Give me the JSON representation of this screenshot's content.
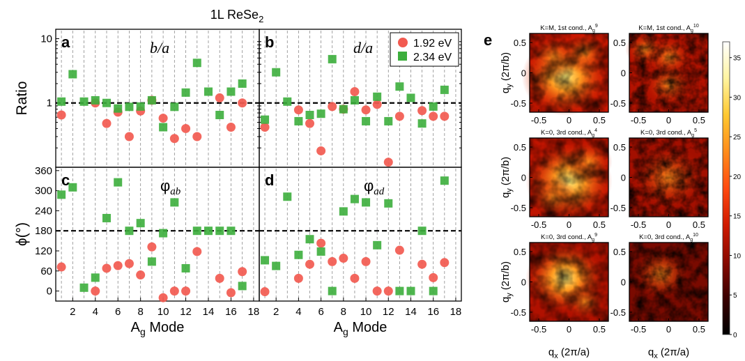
{
  "figure_title": "1L ReSe",
  "figure_title_sub": "2",
  "legend": [
    {
      "label": "1.92 eV",
      "color": "#f25a50",
      "shape": "circle"
    },
    {
      "label": "2.34 eV",
      "color": "#3cae3c",
      "shape": "square"
    }
  ],
  "colors": {
    "red": "#f25a50",
    "green": "#3cae3c"
  },
  "chart_data": [
    {
      "id": "a",
      "panel_letter": "a",
      "type": "scatter",
      "annotation": "b/a",
      "ylabel": "Ratio",
      "ylog": true,
      "ylim": [
        0.1,
        14
      ],
      "yticks": [
        {
          "v": 10,
          "label": "10"
        },
        {
          "v": 1,
          "label": "1"
        }
      ],
      "xlim": [
        0.5,
        18.5
      ],
      "reference_line": 1,
      "series": [
        {
          "name": "1.92 eV",
          "x": [
            1,
            4,
            5,
            6,
            7,
            8,
            9,
            10,
            11,
            12,
            13,
            15,
            16,
            17
          ],
          "y": [
            0.65,
            1.0,
            0.48,
            0.72,
            0.3,
            0.75,
            1.1,
            0.58,
            0.28,
            0.4,
            0.3,
            1.2,
            0.42,
            1.0
          ]
        },
        {
          "name": "2.34 eV",
          "x": [
            1,
            2,
            3,
            4,
            5,
            6,
            7,
            8,
            9,
            10,
            11,
            12,
            13,
            14,
            15,
            16,
            17
          ],
          "y": [
            1.05,
            2.8,
            1.05,
            1.1,
            1.0,
            0.82,
            0.87,
            0.88,
            1.1,
            0.42,
            0.87,
            1.45,
            4.2,
            1.5,
            0.65,
            1.5,
            2.0
          ]
        }
      ]
    },
    {
      "id": "b",
      "panel_letter": "b",
      "type": "scatter",
      "annotation": "d/a",
      "ylog": true,
      "ylim": [
        0.1,
        14
      ],
      "xlim": [
        0.5,
        18.5
      ],
      "reference_line": 1,
      "series": [
        {
          "name": "1.92 eV",
          "x": [
            1,
            4,
            5,
            6,
            7,
            8,
            9,
            10,
            11,
            12,
            13,
            15,
            16,
            17
          ],
          "y": [
            0.42,
            0.78,
            0.48,
            0.18,
            0.88,
            0.8,
            1.5,
            0.78,
            0.95,
            0.12,
            0.62,
            0.76,
            0.62,
            0.62
          ]
        },
        {
          "name": "2.34 eV",
          "x": [
            1,
            2,
            3,
            4,
            5,
            6,
            7,
            8,
            9,
            10,
            11,
            12,
            13,
            14,
            15,
            16,
            17
          ],
          "y": [
            0.55,
            3.0,
            1.05,
            0.52,
            0.65,
            0.68,
            4.8,
            0.8,
            1.1,
            0.52,
            1.25,
            0.52,
            1.8,
            1.2,
            0.48,
            0.88,
            1.6
          ]
        }
      ]
    },
    {
      "id": "c",
      "panel_letter": "c",
      "type": "scatter",
      "annotation": "φ",
      "annotation_sub": "ab",
      "ylabel": "ϕ(°)",
      "ylim": [
        -30,
        370
      ],
      "yticks": [
        {
          "v": 0,
          "label": "0"
        },
        {
          "v": 60,
          "label": "60"
        },
        {
          "v": 120,
          "label": "120"
        },
        {
          "v": 180,
          "label": "180"
        },
        {
          "v": 240,
          "label": "240"
        },
        {
          "v": 300,
          "label": "300"
        },
        {
          "v": 360,
          "label": "360"
        }
      ],
      "xlim": [
        0.5,
        18.5
      ],
      "reference_line": 180,
      "xticks": [
        2,
        4,
        6,
        8,
        10,
        12,
        14,
        16,
        18
      ],
      "xlabel": "A",
      "xlabel_sub": "g",
      "xlabel_tail": " Mode",
      "series": [
        {
          "name": "1.92 eV",
          "x": [
            1,
            4,
            5,
            6,
            7,
            8,
            9,
            10,
            11,
            12,
            13,
            15,
            16,
            17
          ],
          "y": [
            72,
            0,
            68,
            76,
            82,
            48,
            132,
            -20,
            0,
            0,
            118,
            38,
            -5,
            58
          ]
        },
        {
          "name": "2.34 eV",
          "x": [
            1,
            2,
            3,
            4,
            5,
            6,
            7,
            8,
            9,
            10,
            11,
            12,
            13,
            14,
            15,
            16,
            17
          ],
          "y": [
            288,
            310,
            10,
            40,
            218,
            325,
            180,
            203,
            88,
            173,
            265,
            68,
            180,
            180,
            180,
            180,
            15
          ]
        }
      ]
    },
    {
      "id": "d",
      "panel_letter": "d",
      "type": "scatter",
      "annotation": "φ",
      "annotation_sub": "ad",
      "ylim": [
        -30,
        370
      ],
      "xlim": [
        0.5,
        18.5
      ],
      "reference_line": 180,
      "xticks": [
        2,
        4,
        6,
        8,
        10,
        12,
        14,
        16,
        18
      ],
      "xlabel": "A",
      "xlabel_sub": "g",
      "xlabel_tail": " Mode",
      "series": [
        {
          "name": "1.92 eV",
          "x": [
            1,
            4,
            5,
            6,
            7,
            8,
            9,
            10,
            11,
            12,
            13,
            15,
            16,
            17
          ],
          "y": [
            -2,
            38,
            80,
            143,
            88,
            98,
            38,
            88,
            0,
            0,
            122,
            80,
            40,
            85
          ]
        },
        {
          "name": "2.34 eV",
          "x": [
            1,
            2,
            3,
            4,
            5,
            6,
            7,
            8,
            9,
            10,
            11,
            12,
            13,
            14,
            15,
            16,
            17
          ],
          "y": [
            92,
            75,
            282,
            108,
            155,
            118,
            0,
            238,
            275,
            265,
            137,
            262,
            0,
            0,
            180,
            0,
            330
          ]
        }
      ]
    },
    {
      "id": "e",
      "panel_letter": "e",
      "type": "heatmap",
      "maps": [
        {
          "title": "K=M, 1st cond., A",
          "title_sub": "g",
          "title_sup": "9"
        },
        {
          "title": "K=M, 1st cond., A",
          "title_sub": "g",
          "title_sup": "10"
        },
        {
          "title": "K=0, 3rd cond., A",
          "title_sub": "g",
          "title_sup": "4"
        },
        {
          "title": "K=0, 3rd cond., A",
          "title_sub": "g",
          "title_sup": "5"
        },
        {
          "title": "K=0, 3rd cond., A",
          "title_sub": "g",
          "title_sup": "9"
        },
        {
          "title": "K=0, 3rd cond., A",
          "title_sub": "g",
          "title_sup": "10"
        }
      ],
      "map_ticks": [
        {
          "v": -0.5,
          "label": "-0.5"
        },
        {
          "v": 0,
          "label": "0"
        },
        {
          "v": 0.5,
          "label": "0.5"
        }
      ],
      "xlabel": "q",
      "xlabel_sub": "x",
      "xlabel_tail": " (2π/a)",
      "ylabel": "q",
      "ylabel_sub": "y",
      "ylabel_tail": " (2π/b)",
      "colorbar": {
        "ticks": [
          0,
          5,
          10,
          15,
          20,
          25,
          30,
          35
        ],
        "range": [
          0,
          37
        ],
        "stops": [
          "#000000",
          "#3a0000",
          "#8a0a00",
          "#d01a00",
          "#ff4a10",
          "#ff8c1a",
          "#ffc830",
          "#fff4a0",
          "#ffffff"
        ]
      }
    }
  ]
}
